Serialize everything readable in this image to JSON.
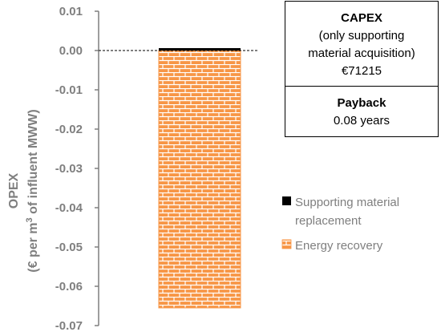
{
  "chart_data": {
    "type": "bar",
    "stacked": true,
    "ylabel_line1": "OPEX",
    "ylabel_line2_pre": "(€ per m",
    "ylabel_line2_sup": "3",
    "ylabel_line2_post": " of influent MWW)",
    "ylim": [
      -0.07,
      0.01
    ],
    "yticks": [
      "0.01",
      "0.00",
      "-0.01",
      "-0.02",
      "-0.03",
      "-0.04",
      "-0.05",
      "-0.06",
      "-0.07"
    ],
    "ytick_values": [
      0.01,
      0.0,
      -0.01,
      -0.02,
      -0.03,
      -0.04,
      -0.05,
      -0.06,
      -0.07
    ],
    "zero_line": "dashed",
    "series": [
      {
        "name": "Supporting material replacement",
        "value": 0.0005,
        "color": "#000000"
      },
      {
        "name": "Energy recovery",
        "value": -0.0655,
        "color": "#f79646",
        "pattern": "brick"
      }
    ],
    "legend": [
      {
        "line1": "Supporting material",
        "line2": "replacement"
      },
      {
        "line1": "Energy recovery",
        "line2": ""
      }
    ],
    "legend_position": "right"
  },
  "info": {
    "capex_title": "CAPEX",
    "capex_line1": "(only supporting",
    "capex_line2": "material acquisition)",
    "capex_value": "€71215",
    "payback_title": "Payback",
    "payback_value": "0.08 years"
  },
  "colors": {
    "axis": "#7f7f7f",
    "energy_fill": "#f79646",
    "brick_line": "#ffffff",
    "support_fill": "#000000"
  }
}
